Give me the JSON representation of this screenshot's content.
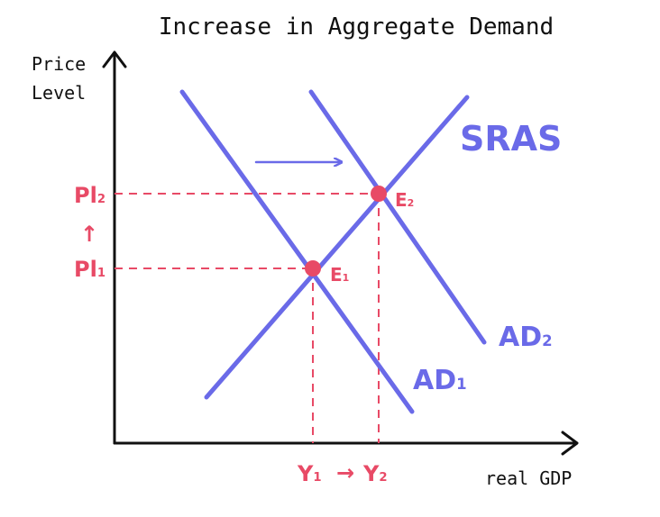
{
  "title": "Increase in Aggregate Demand",
  "y_axis": {
    "label_line1": "Price",
    "label_line2": "Level"
  },
  "x_axis": {
    "label": "real GDP"
  },
  "curves": {
    "sras": {
      "label": "SRAS"
    },
    "ad1": {
      "main": "AD",
      "sub": "1"
    },
    "ad2": {
      "main": "AD",
      "sub": "2"
    }
  },
  "equilibria": {
    "e1": {
      "main": "E",
      "sub": "1"
    },
    "e2": {
      "main": "E",
      "sub": "2"
    }
  },
  "price_levels": {
    "p1": {
      "main": "Pl",
      "sub": "1"
    },
    "p2": {
      "main": "Pl",
      "sub": "2"
    },
    "arrow": "↑"
  },
  "outputs": {
    "y1": {
      "main": "Y",
      "sub": "1"
    },
    "y2": {
      "main": "Y",
      "sub": "2"
    },
    "arrow": "→"
  },
  "colors": {
    "curves": "#6a6ae8",
    "highlight": "#e84a66",
    "axes": "#111111"
  }
}
